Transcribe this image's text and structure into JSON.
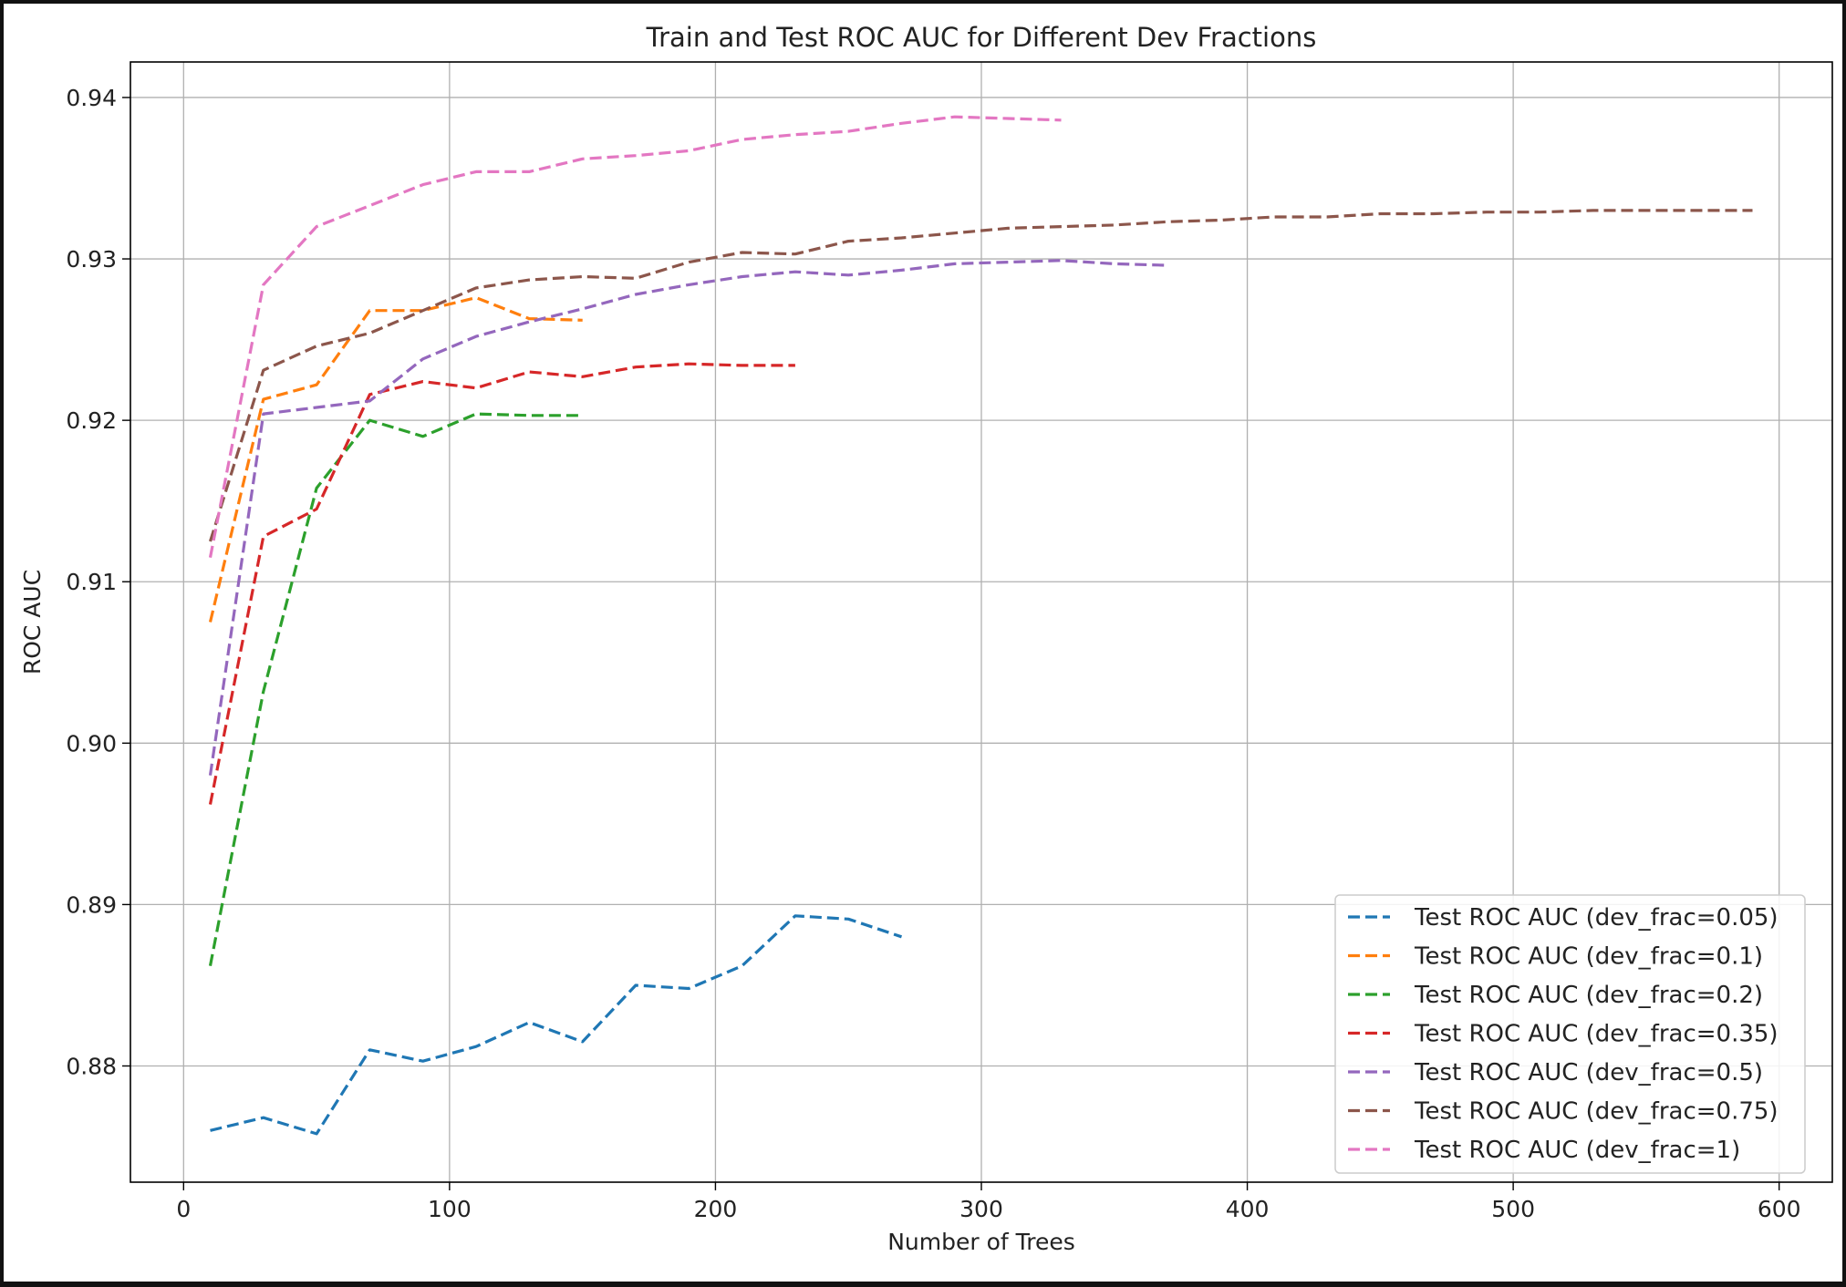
{
  "chart_data": {
    "type": "line",
    "title": "Train and Test ROC AUC for Different Dev Fractions",
    "xlabel": "Number of Trees",
    "ylabel": "ROC AUC",
    "xlim": [
      -20,
      620
    ],
    "ylim": [
      0.8728,
      0.9422
    ],
    "xticks": [
      0,
      100,
      200,
      300,
      400,
      500,
      600
    ],
    "yticks": [
      0.88,
      0.89,
      0.9,
      0.91,
      0.92,
      0.93,
      0.94
    ],
    "ytick_labels": [
      "0.88",
      "0.89",
      "0.90",
      "0.91",
      "0.92",
      "0.93",
      "0.94"
    ],
    "grid": true,
    "legend_position": "lower-right",
    "line_style": "dashed",
    "series": [
      {
        "name": "Test ROC AUC (dev_frac=0.05)",
        "color": "#1f77b4",
        "x": [
          10,
          30,
          50,
          70,
          90,
          110,
          130,
          150,
          170,
          190,
          210,
          230,
          250,
          270
        ],
        "y": [
          0.876,
          0.8768,
          0.8758,
          0.881,
          0.8803,
          0.8812,
          0.8827,
          0.8815,
          0.885,
          0.8848,
          0.8862,
          0.8893,
          0.8891,
          0.888
        ]
      },
      {
        "name": "Test ROC AUC (dev_frac=0.1)",
        "color": "#ff7f0e",
        "x": [
          10,
          30,
          50,
          70,
          90,
          110,
          130,
          150
        ],
        "y": [
          0.9075,
          0.9213,
          0.9222,
          0.9268,
          0.9268,
          0.9276,
          0.9263,
          0.9262
        ]
      },
      {
        "name": "Test ROC AUC (dev_frac=0.2)",
        "color": "#2ca02c",
        "x": [
          10,
          30,
          50,
          70,
          90,
          110,
          130,
          150
        ],
        "y": [
          0.8862,
          0.9032,
          0.9158,
          0.92,
          0.919,
          0.9204,
          0.9203,
          0.9203
        ]
      },
      {
        "name": "Test ROC AUC (dev_frac=0.35)",
        "color": "#d62728",
        "x": [
          10,
          30,
          50,
          70,
          90,
          110,
          130,
          150,
          170,
          190,
          210,
          230
        ],
        "y": [
          0.8962,
          0.9128,
          0.9145,
          0.9216,
          0.9224,
          0.922,
          0.923,
          0.9227,
          0.9233,
          0.9235,
          0.9234,
          0.9234
        ]
      },
      {
        "name": "Test ROC AUC (dev_frac=0.5)",
        "color": "#9467bd",
        "x": [
          10,
          30,
          50,
          70,
          90,
          110,
          130,
          150,
          170,
          190,
          210,
          230,
          250,
          270,
          290,
          310,
          330,
          350,
          370
        ],
        "y": [
          0.898,
          0.9204,
          0.9208,
          0.9212,
          0.9238,
          0.9252,
          0.9261,
          0.9269,
          0.9278,
          0.9284,
          0.9289,
          0.9292,
          0.929,
          0.9293,
          0.9297,
          0.9298,
          0.9299,
          0.9297,
          0.9296
        ]
      },
      {
        "name": "Test ROC AUC (dev_frac=0.75)",
        "color": "#8c564b",
        "x": [
          10,
          30,
          50,
          70,
          90,
          110,
          130,
          150,
          170,
          190,
          210,
          230,
          250,
          270,
          290,
          310,
          330,
          350,
          370,
          390,
          410,
          430,
          450,
          470,
          490,
          510,
          530,
          550,
          570,
          590
        ],
        "y": [
          0.9125,
          0.9231,
          0.9246,
          0.9254,
          0.9268,
          0.9282,
          0.9287,
          0.9289,
          0.9288,
          0.9298,
          0.9304,
          0.9303,
          0.9311,
          0.9313,
          0.9316,
          0.9319,
          0.932,
          0.9321,
          0.9323,
          0.9324,
          0.9326,
          0.9326,
          0.9328,
          0.9328,
          0.9329,
          0.9329,
          0.933,
          0.933,
          0.933,
          0.933
        ]
      },
      {
        "name": "Test ROC AUC (dev_frac=1)",
        "color": "#e377c2",
        "x": [
          10,
          30,
          50,
          70,
          90,
          110,
          130,
          150,
          170,
          190,
          210,
          230,
          250,
          270,
          290,
          310,
          330
        ],
        "y": [
          0.9115,
          0.9284,
          0.932,
          0.9333,
          0.9346,
          0.9354,
          0.9354,
          0.9362,
          0.9364,
          0.9367,
          0.9374,
          0.9377,
          0.9379,
          0.9384,
          0.9388,
          0.9387,
          0.9386
        ]
      }
    ]
  }
}
